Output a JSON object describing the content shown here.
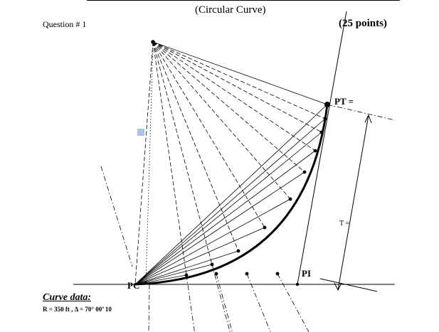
{
  "header": {
    "subtitle": "(Circular Curve)",
    "question": "Question # 1",
    "points": "(25 points)"
  },
  "labels": {
    "pt": "PT =",
    "pi": "PI",
    "pc": "PC",
    "tangent": "T ="
  },
  "curve_data": {
    "title": "Curve data:",
    "values": "R = 350 ft ,  Δ  = 70° 00’ 10"
  }
}
